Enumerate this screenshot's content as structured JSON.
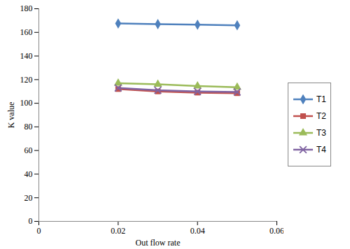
{
  "chart_data": {
    "type": "line",
    "x_label": "Out flow rate",
    "y_label": "K value",
    "x": [
      0.02,
      0.03,
      0.04,
      0.05
    ],
    "xlim": [
      0,
      0.06
    ],
    "xticks": [
      0,
      0.02,
      0.04,
      0.06
    ],
    "ylim": [
      0,
      180
    ],
    "yticks": [
      0,
      20,
      40,
      60,
      80,
      100,
      120,
      140,
      160,
      180
    ],
    "grid": false,
    "legend": "right",
    "series": [
      {
        "name": "T1",
        "color": "#4F81BD",
        "marker": "diamond",
        "values": [
          167.5,
          167,
          166.5,
          166
        ]
      },
      {
        "name": "T2",
        "color": "#C0504D",
        "marker": "square",
        "values": [
          112,
          110,
          109,
          108.5
        ]
      },
      {
        "name": "T3",
        "color": "#9BBB59",
        "marker": "triangle",
        "values": [
          117,
          116,
          114.5,
          113.5
        ]
      },
      {
        "name": "T4",
        "color": "#8064A2",
        "marker": "times",
        "values": [
          113,
          111,
          110,
          109.5
        ]
      }
    ]
  }
}
